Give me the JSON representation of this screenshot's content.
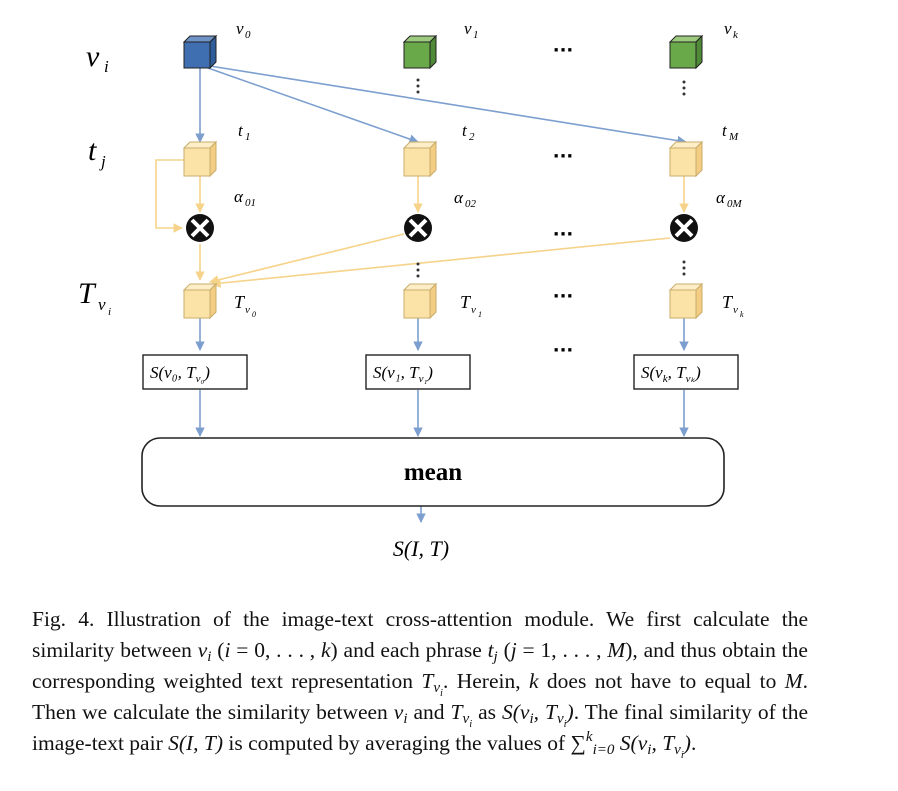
{
  "figure": {
    "row_labels": {
      "v_i": "v",
      "v_sub": "i",
      "t_j": "t",
      "t_sub": "j",
      "T_vi": "T",
      "T_sub": "v",
      "T_subsub": "i"
    },
    "columns": [
      {
        "v_label": "v",
        "v_sub": "0",
        "t_label": "t",
        "t_sub": "1",
        "alpha_label": "α",
        "alpha_sub": "01",
        "Tv_label": "T",
        "Tv_sub": "v",
        "Tv_subsub": "0",
        "score": "S(v₀, T",
        "score_sub": "v₀",
        "score_end": ")"
      },
      {
        "v_label": "v",
        "v_sub": "1",
        "t_label": "t",
        "t_sub": "2",
        "alpha_label": "α",
        "alpha_sub": "02",
        "Tv_label": "T",
        "Tv_sub": "v",
        "Tv_subsub": "1",
        "score": "S(v₁, T",
        "score_sub": "v₁",
        "score_end": ")"
      },
      {
        "v_label": "v",
        "v_sub": "k",
        "t_label": "t",
        "t_sub": "M",
        "alpha_label": "α",
        "alpha_sub": "0M",
        "Tv_label": "T",
        "Tv_sub": "v",
        "Tv_subsub": "k",
        "score": "S(v",
        "score_sub_k": "k",
        "score_mid": ", T",
        "score_sub": "vₖ",
        "score_end": ")"
      }
    ],
    "ellipsis": "···",
    "mean_label": "mean",
    "output_label": "S(I, T)",
    "colors": {
      "blue_cube": "#3f6fb0",
      "green_cube": "#6aa94a",
      "yellow_cube": "#fbe3a8",
      "blue_line": "#7d9fcf",
      "yellow_line": "#f6d38a"
    }
  },
  "caption": {
    "p1": "Fig. 4.  Illustration of the image-text cross-attention module. We first calculate the similarity between ",
    "p2": " (",
    "p3": " = 0, . . . , ",
    "p4": ") and each phrase ",
    "p5": " (",
    "p6": " = 1, . . . , ",
    "p7": "), and thus obtain the corresponding weighted text representation ",
    "p8": ". Herein, ",
    "p9": " does not have to equal to ",
    "p10": ". Then we calculate the similarity between ",
    "p11": " and ",
    "p12": " as ",
    "p13": ". The final similarity of the image-text pair ",
    "p14": " is computed by averaging the values of ",
    "p15": ".",
    "sym_v": "v",
    "sym_i": "i",
    "sym_k": "k",
    "sym_t": "t",
    "sym_j": "j",
    "sym_M": "M",
    "sym_T": "T",
    "sym_S_vT": "S(v",
    "sym_S_IT": "S(I, T)",
    "sym_sum": "∑",
    "sym_sum_low": "i=0",
    "sym_close": ")",
    "sym_comma_T": ", T"
  }
}
